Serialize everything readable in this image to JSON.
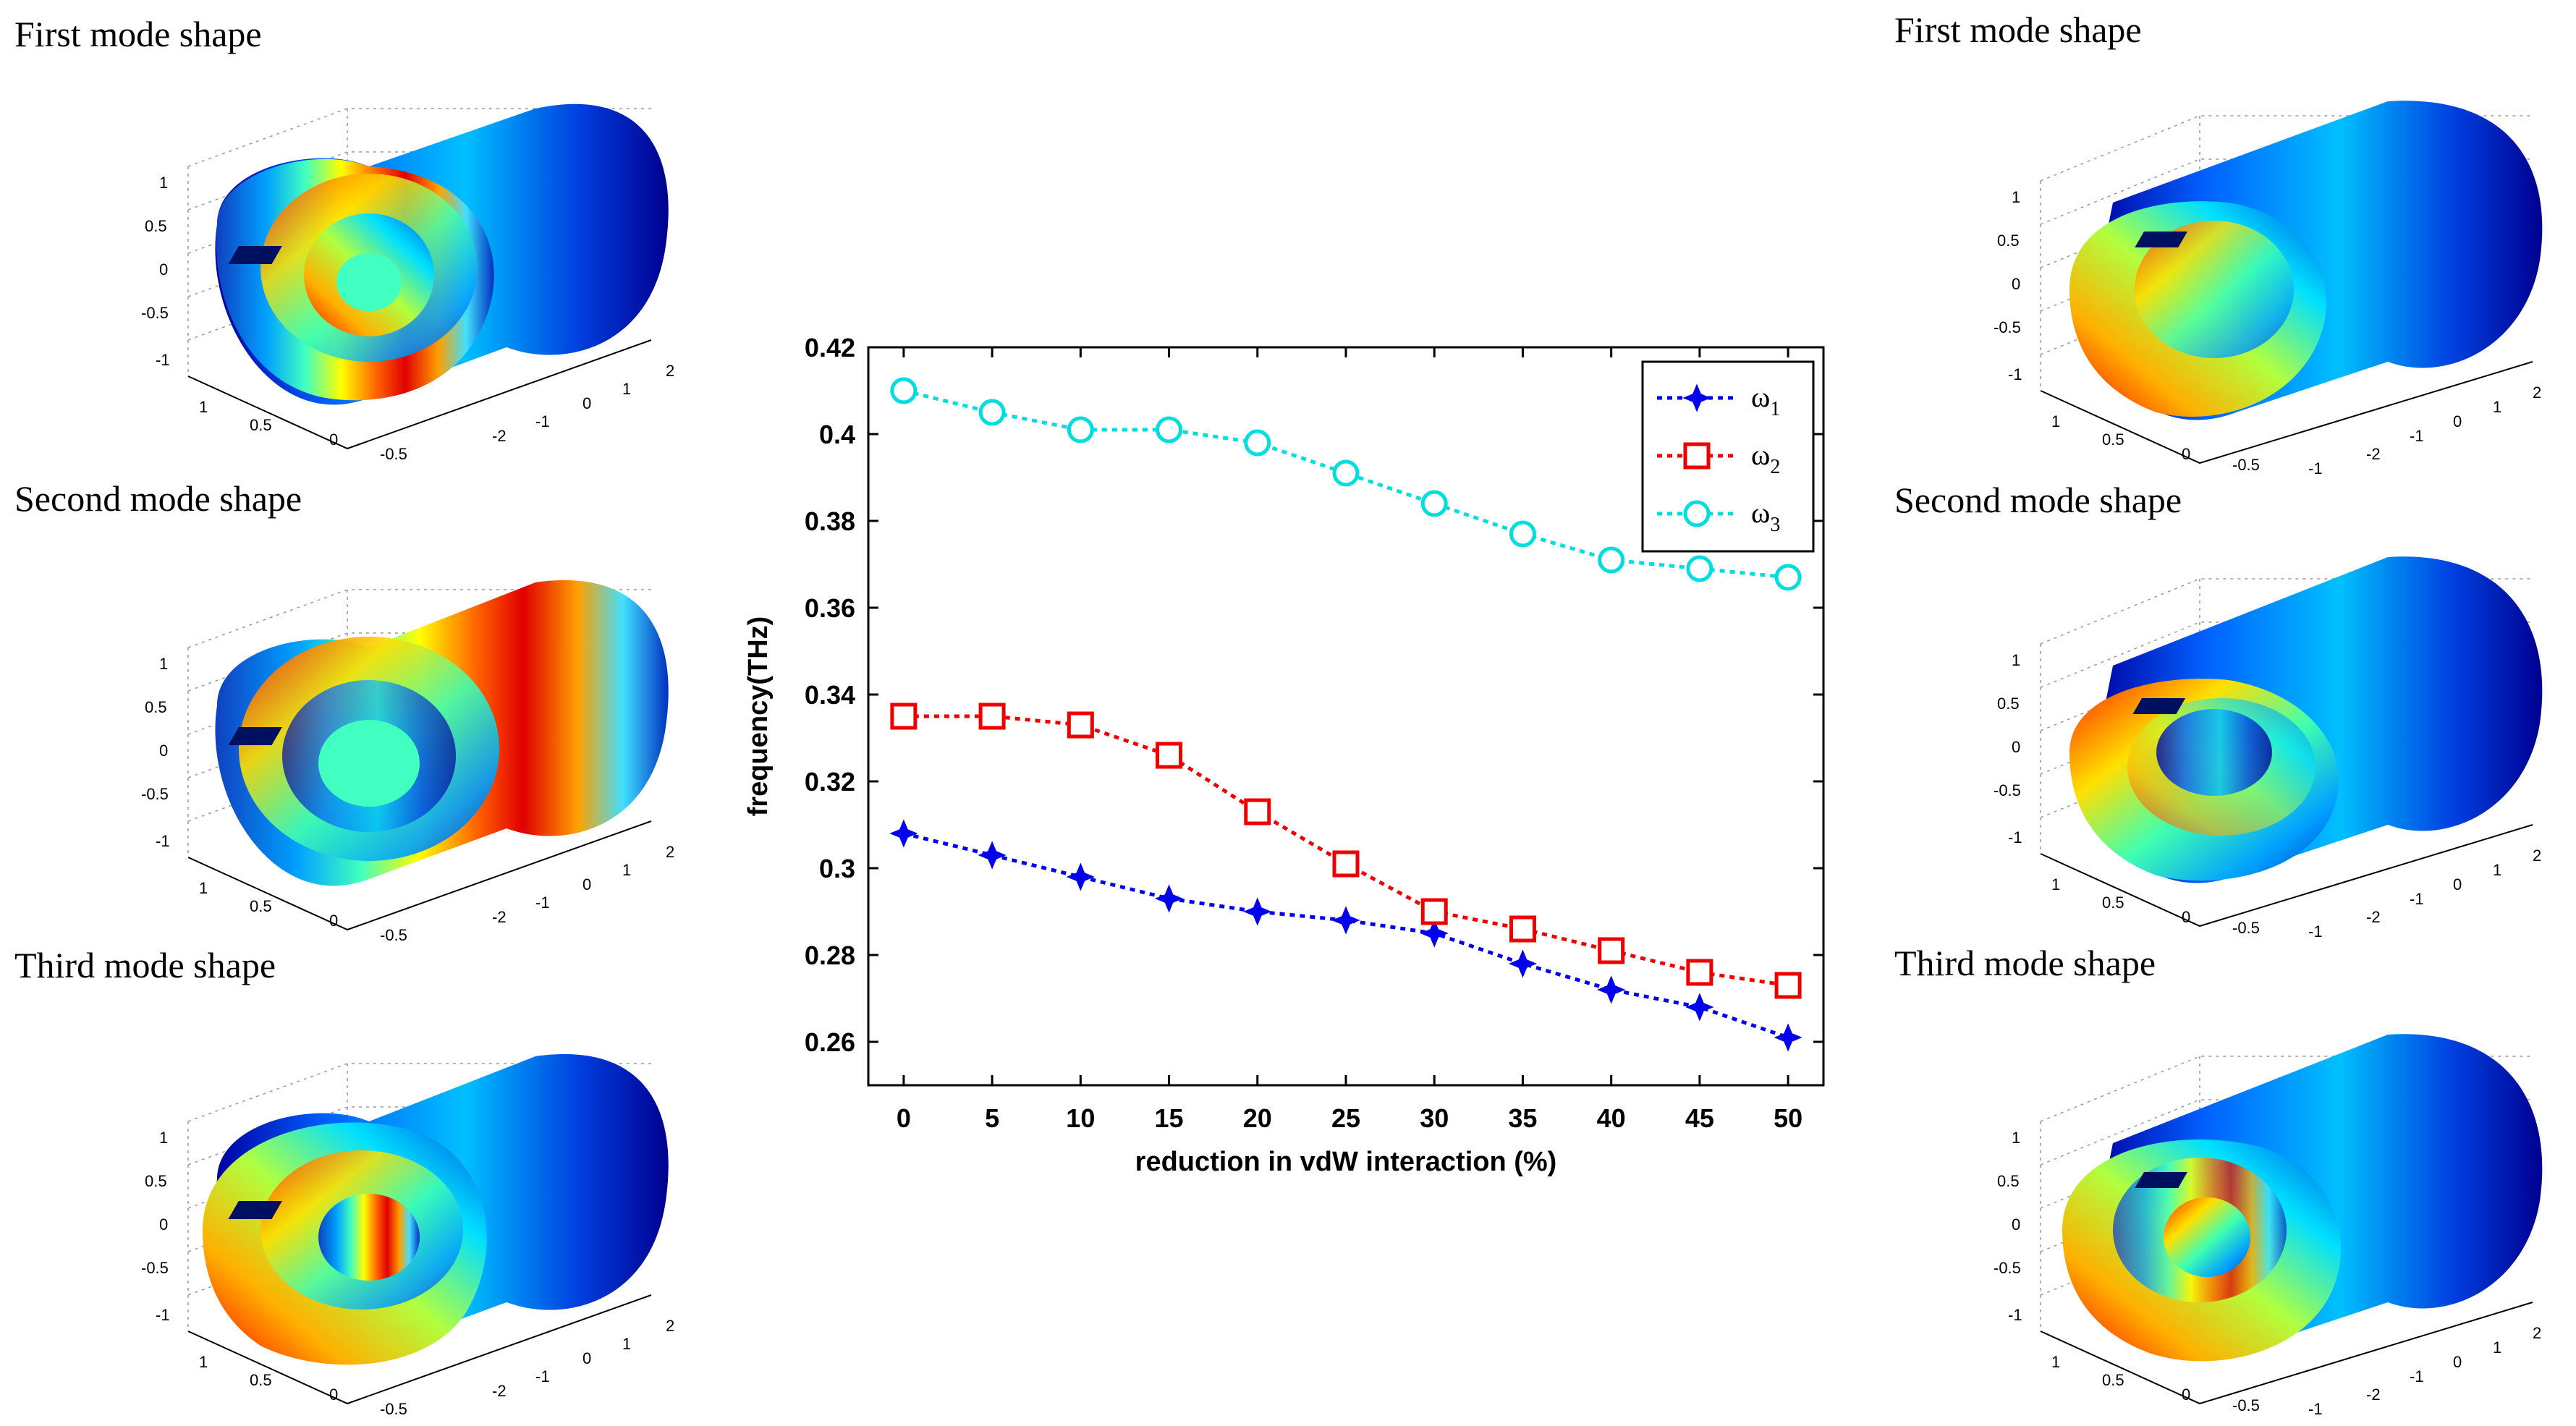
{
  "left_panels": [
    {
      "title": "First mode shape"
    },
    {
      "title": "Second mode shape"
    },
    {
      "title": "Third mode shape"
    }
  ],
  "right_panels": [
    {
      "title": "First mode shape"
    },
    {
      "title": "Second mode shape"
    },
    {
      "title": "Third mode shape"
    }
  ],
  "axes3d_left": {
    "z_ticks": [
      "1",
      "0.5",
      "0",
      "-0.5",
      "-1"
    ],
    "x_ticks": [
      "1",
      "0.5",
      "0",
      "-0.5"
    ],
    "y_ticks": [
      "2",
      "1",
      "0",
      "-1",
      "-2"
    ]
  },
  "axes3d_right": {
    "z_ticks": [
      "1",
      "0.5",
      "0",
      "-0.5",
      "-1"
    ],
    "x_ticks": [
      "1",
      "0.5",
      "0",
      "-0.5",
      "-1"
    ],
    "y_ticks": [
      "2",
      "1",
      "0",
      "-1",
      "-2"
    ]
  },
  "colors": {
    "omega1": "#0000ee",
    "omega2": "#ee0000",
    "omega3": "#00dddd"
  },
  "chart_data": {
    "type": "line",
    "xlabel": "reduction in vdW interaction (%)",
    "ylabel": "frequency(THz)",
    "x": [
      0,
      5,
      10,
      15,
      20,
      25,
      30,
      35,
      40,
      45,
      50
    ],
    "xlim": [
      -2,
      52
    ],
    "ylim": [
      0.25,
      0.42
    ],
    "yticks": [
      0.26,
      0.28,
      0.3,
      0.32,
      0.34,
      0.36,
      0.38,
      0.4,
      0.42
    ],
    "ytick_labels": [
      "0.26",
      "0.28",
      "0.3",
      "0.32",
      "0.34",
      "0.36",
      "0.38",
      "0.4",
      "0.42"
    ],
    "xtick_labels": [
      "0",
      "5",
      "10",
      "15",
      "20",
      "25",
      "30",
      "35",
      "40",
      "45",
      "50"
    ],
    "legend_position": "top-right",
    "series": [
      {
        "name": "ω",
        "sub": "1",
        "marker": "star",
        "color_key": "omega1",
        "values": [
          0.308,
          0.303,
          0.298,
          0.293,
          0.29,
          0.288,
          0.285,
          0.278,
          0.272,
          0.268,
          0.261
        ]
      },
      {
        "name": "ω",
        "sub": "2",
        "marker": "square",
        "color_key": "omega2",
        "values": [
          0.335,
          0.335,
          0.333,
          0.326,
          0.313,
          0.301,
          0.29,
          0.286,
          0.281,
          0.276,
          0.273
        ]
      },
      {
        "name": "ω",
        "sub": "3",
        "marker": "circle",
        "color_key": "omega3",
        "values": [
          0.41,
          0.405,
          0.401,
          0.401,
          0.398,
          0.391,
          0.384,
          0.377,
          0.371,
          0.369,
          0.367
        ]
      }
    ]
  }
}
